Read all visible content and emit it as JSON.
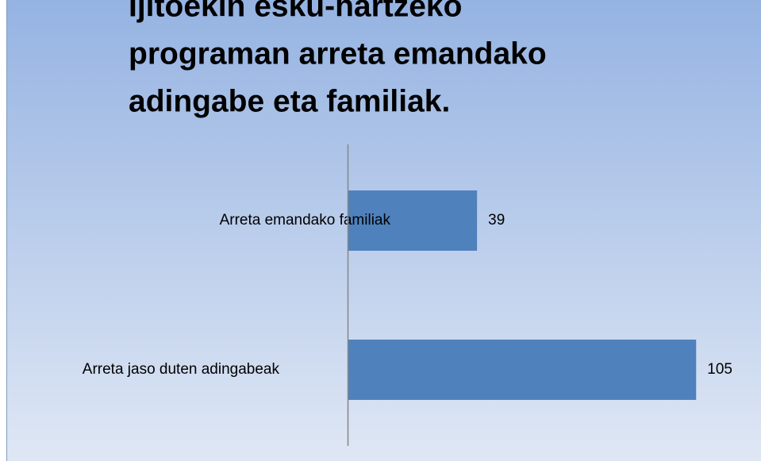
{
  "chart_data": {
    "type": "bar",
    "orientation": "horizontal",
    "title": [
      "Ijitoekin esku-hartzeko",
      "programan arreta emandako",
      "adingabe eta familiak."
    ],
    "categories": [
      "Arreta emandako familiak",
      "Arreta jaso duten adingabeak"
    ],
    "values": [
      39,
      105
    ],
    "color": "#4f81bd",
    "xlim": [
      0,
      120
    ]
  }
}
